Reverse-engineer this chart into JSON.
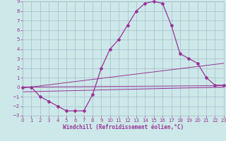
{
  "xlabel": "Windchill (Refroidissement éolien,°C)",
  "x_hours": [
    0,
    1,
    2,
    3,
    4,
    5,
    6,
    7,
    8,
    9,
    10,
    11,
    12,
    13,
    14,
    15,
    16,
    17,
    18,
    19,
    20,
    21,
    22,
    23
  ],
  "windchill": [
    0,
    0,
    -1,
    -1.5,
    -2,
    -2.5,
    -2.5,
    -2.5,
    -0.8,
    2,
    4,
    5,
    6.5,
    8,
    8.8,
    9,
    8.8,
    6.5,
    3.5,
    3,
    2.5,
    1,
    0.2,
    0.2
  ],
  "ref_line1": [
    [
      0,
      0.0
    ],
    [
      23,
      0.15
    ]
  ],
  "ref_line2": [
    [
      0,
      -0.1
    ],
    [
      23,
      2.5
    ]
  ],
  "ref_line3": [
    [
      0,
      -0.5
    ],
    [
      23,
      0.0
    ]
  ],
  "ylim": [
    -3,
    9
  ],
  "xlim": [
    0,
    23
  ],
  "bg_color": "#cce8e8",
  "grid_color": "#aabbcc",
  "line_color": "#993399",
  "marker": "D",
  "marker_size": 2.0,
  "tick_fontsize": 5.0,
  "xlabel_fontsize": 5.5
}
